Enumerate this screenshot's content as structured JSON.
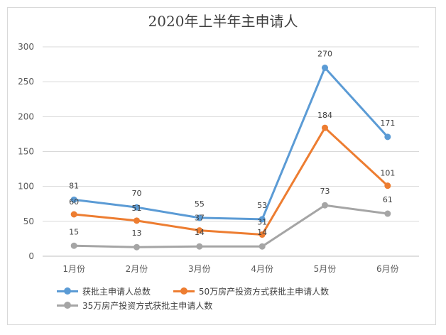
{
  "chart_data": {
    "type": "line",
    "title": "2020年上半年主申请人",
    "categories": [
      "1月份",
      "2月份",
      "3月份",
      "4月份",
      "5月份",
      "6月份"
    ],
    "ylim": [
      0,
      300
    ],
    "yticks": [
      0,
      50,
      100,
      150,
      200,
      250,
      300
    ],
    "grid": true,
    "legend_position": "bottom",
    "series": [
      {
        "name": "获批主申请人总数",
        "color": "#5b9bd5",
        "values": [
          81,
          70,
          55,
          53,
          270,
          171
        ]
      },
      {
        "name": "50万房产投资方式获批主申请人数",
        "color": "#ed7d31",
        "values": [
          60,
          51,
          37,
          31,
          184,
          101
        ]
      },
      {
        "name": "35万房产投资方式获批主申请人数",
        "color": "#a5a5a5",
        "values": [
          15,
          13,
          14,
          14,
          73,
          61
        ]
      }
    ]
  }
}
